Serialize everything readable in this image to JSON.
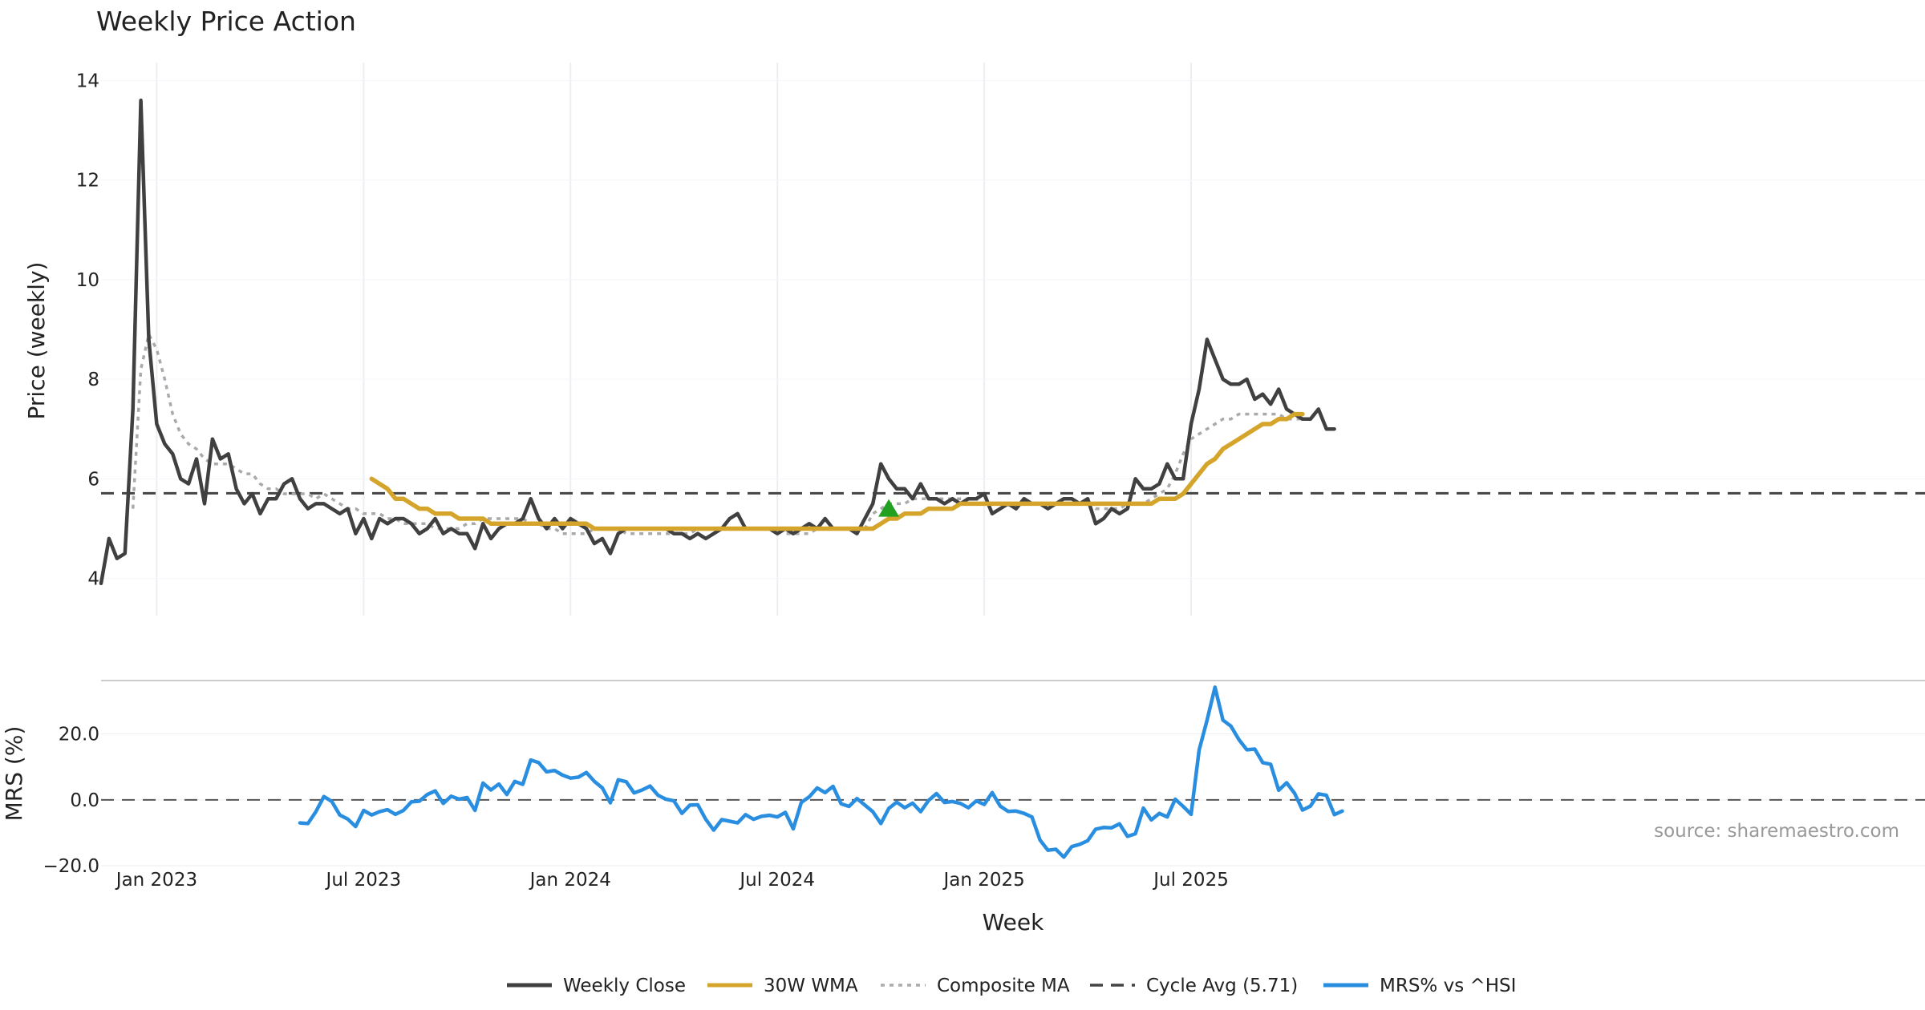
{
  "chart_data": [
    {
      "type": "line",
      "panel": "price",
      "title": "Weekly Price Action",
      "xlabel": "Week",
      "ylabel": "Price (weekly)",
      "ylim": [
        3.8,
        14.2
      ],
      "yticks": [
        4,
        6,
        8,
        10,
        12,
        14
      ],
      "x_start": "2022-11-14",
      "x_step_days": 7,
      "xtick_labels": [
        "Jan 2023",
        "Jul 2023",
        "Jan 2024",
        "Jul 2024",
        "Jan 2025",
        "Jul 2025"
      ],
      "xtick_weeks": [
        7,
        33,
        59,
        85,
        111,
        137
      ],
      "series": [
        {
          "name": "Weekly Close",
          "color": "#404040",
          "style": "solid",
          "start_week": 0,
          "values": [
            3.9,
            4.8,
            4.4,
            4.5,
            7.4,
            13.6,
            8.8,
            7.1,
            6.7,
            6.5,
            6.0,
            5.9,
            6.4,
            5.5,
            6.8,
            6.4,
            6.5,
            5.8,
            5.5,
            5.7,
            5.3,
            5.6,
            5.6,
            5.9,
            6.0,
            5.6,
            5.4,
            5.5,
            5.5,
            5.4,
            5.3,
            5.4,
            4.9,
            5.2,
            4.8,
            5.2,
            5.1,
            5.2,
            5.2,
            5.1,
            4.9,
            5.0,
            5.2,
            4.9,
            5.0,
            4.9,
            4.9,
            4.6,
            5.1,
            4.8,
            5.0,
            5.1,
            5.1,
            5.2,
            5.6,
            5.2,
            5.0,
            5.2,
            5.0,
            5.2,
            5.1,
            5.0,
            4.7,
            4.8,
            4.5,
            4.9,
            5.0,
            5.0,
            5.0,
            5.0,
            5.0,
            5.0,
            4.9,
            4.9,
            4.8,
            4.9,
            4.8,
            4.9,
            5.0,
            5.2,
            5.3,
            5.0,
            5.0,
            5.0,
            5.0,
            4.9,
            5.0,
            4.9,
            5.0,
            5.1,
            5.0,
            5.2,
            5.0,
            5.0,
            5.0,
            4.9,
            5.2,
            5.5,
            6.3,
            6.0,
            5.8,
            5.8,
            5.6,
            5.9,
            5.6,
            5.6,
            5.5,
            5.6,
            5.5,
            5.6,
            5.6,
            5.7,
            5.3,
            5.4,
            5.5,
            5.4,
            5.6,
            5.5,
            5.5,
            5.4,
            5.5,
            5.6,
            5.6,
            5.5,
            5.6,
            5.1,
            5.2,
            5.4,
            5.3,
            5.4,
            6.0,
            5.8,
            5.8,
            5.9,
            6.3,
            6.0,
            6.0,
            7.1,
            7.8,
            8.8,
            8.4,
            8.0,
            7.9,
            7.9,
            8.0,
            7.6,
            7.7,
            7.5,
            7.8,
            7.4,
            7.3,
            7.2,
            7.2,
            7.4,
            7.0,
            7.0
          ]
        },
        {
          "name": "30W WMA",
          "color": "#d4a52a",
          "style": "solid",
          "start_week": 34,
          "values": [
            6.0,
            5.9,
            5.8,
            5.6,
            5.6,
            5.5,
            5.4,
            5.4,
            5.3,
            5.3,
            5.3,
            5.2,
            5.2,
            5.2,
            5.2,
            5.1,
            5.1,
            5.1,
            5.1,
            5.1,
            5.1,
            5.1,
            5.1,
            5.1,
            5.1,
            5.1,
            5.1,
            5.1,
            5.0,
            5.0,
            5.0,
            5.0,
            5.0,
            5.0,
            5.0,
            5.0,
            5.0,
            5.0,
            5.0,
            5.0,
            5.0,
            5.0,
            5.0,
            5.0,
            5.0,
            5.0,
            5.0,
            5.0,
            5.0,
            5.0,
            5.0,
            5.0,
            5.0,
            5.0,
            5.0,
            5.0,
            5.0,
            5.0,
            5.0,
            5.0,
            5.0,
            5.0,
            5.0,
            5.0,
            5.1,
            5.2,
            5.2,
            5.3,
            5.3,
            5.3,
            5.4,
            5.4,
            5.4,
            5.4,
            5.5,
            5.5,
            5.5,
            5.5,
            5.5,
            5.5,
            5.5,
            5.5,
            5.5,
            5.5,
            5.5,
            5.5,
            5.5,
            5.5,
            5.5,
            5.5,
            5.5,
            5.5,
            5.5,
            5.5,
            5.5,
            5.5,
            5.5,
            5.5,
            5.5,
            5.6,
            5.6,
            5.6,
            5.7,
            5.9,
            6.1,
            6.3,
            6.4,
            6.6,
            6.7,
            6.8,
            6.9,
            7.0,
            7.1,
            7.1,
            7.2,
            7.2,
            7.3,
            7.3
          ]
        },
        {
          "name": "Composite MA",
          "color": "#aaaaaa",
          "style": "dotted",
          "start_week": 4,
          "values": [
            5.4,
            8.2,
            8.9,
            8.6,
            8.0,
            7.3,
            6.9,
            6.7,
            6.6,
            6.4,
            6.3,
            6.3,
            6.3,
            6.2,
            6.1,
            6.1,
            5.9,
            5.8,
            5.8,
            5.7,
            5.7,
            5.7,
            5.7,
            5.6,
            5.7,
            5.6,
            5.5,
            5.4,
            5.4,
            5.3,
            5.3,
            5.3,
            5.2,
            5.2,
            5.1,
            5.1,
            5.1,
            5.1,
            5.0,
            5.0,
            5.0,
            5.0,
            5.1,
            5.1,
            5.2,
            5.2,
            5.2,
            5.2,
            5.2,
            5.2,
            5.1,
            5.1,
            5.0,
            5.0,
            4.9,
            4.9,
            4.9,
            4.9,
            5.0,
            5.0,
            5.0,
            5.0,
            4.9,
            4.9,
            4.9,
            4.9,
            4.9,
            4.9,
            4.9,
            4.9,
            4.9,
            5.0,
            5.0,
            5.0,
            5.0,
            5.0,
            5.0,
            5.0,
            5.0,
            5.0,
            5.0,
            5.0,
            4.9,
            4.9,
            4.9,
            4.9,
            5.0,
            5.0,
            5.0,
            5.0,
            5.0,
            5.0,
            5.0,
            5.3,
            5.4,
            5.5,
            5.5,
            5.5,
            5.6,
            5.6,
            5.6,
            5.6,
            5.6,
            5.6,
            5.6,
            5.6,
            5.6,
            5.5,
            5.5,
            5.5,
            5.5,
            5.5,
            5.5,
            5.5,
            5.5,
            5.5,
            5.5,
            5.5,
            5.5,
            5.5,
            5.5,
            5.4,
            5.4,
            5.4,
            5.4,
            5.5,
            5.5,
            5.5,
            5.6,
            5.7,
            5.8,
            6.1,
            6.5,
            6.8,
            6.9,
            7.0,
            7.1,
            7.2,
            7.2,
            7.3,
            7.3,
            7.3,
            7.3,
            7.3,
            7.3,
            7.2,
            7.2,
            7.2
          ]
        }
      ],
      "reference_line": {
        "label": "Cycle Avg (5.71)",
        "value": 5.71,
        "color": "#444444"
      },
      "marker": {
        "type": "triangle-up",
        "color": "#22a022",
        "week": 99,
        "value": 5.4
      }
    },
    {
      "type": "line",
      "panel": "mrs",
      "ylabel": "MRS (%)",
      "ylim": [
        -20.0,
        35.0
      ],
      "yticks": [
        -20.0,
        0.0,
        20.0
      ],
      "ytick_labels": [
        "−20.0",
        "0.0",
        "20.0"
      ],
      "series": [
        {
          "name": "MRS% vs ^HSI",
          "color": "#2a8ee0",
          "style": "solid",
          "start_week": 25,
          "values": [
            -7.0,
            -7.2,
            -3.6,
            1.0,
            -0.5,
            -4.6,
            -5.8,
            -8.1,
            -3.2,
            -4.6,
            -3.6,
            -3.0,
            -4.4,
            -3.2,
            -0.6,
            -0.4,
            1.6,
            2.7,
            -1.1,
            1.1,
            0.2,
            0.7,
            -3.2,
            5.1,
            3.0,
            4.8,
            1.6,
            5.6,
            4.7,
            12.1,
            11.3,
            8.5,
            8.9,
            7.5,
            6.6,
            6.9,
            8.3,
            5.6,
            3.6,
            -0.9,
            6.1,
            5.5,
            2.1,
            3.0,
            4.2,
            1.4,
            0.2,
            -0.3,
            -4.1,
            -1.6,
            -1.5,
            -5.9,
            -9.2,
            -6.0,
            -6.5,
            -7.0,
            -4.5,
            -5.9,
            -5.0,
            -4.7,
            -5.2,
            -3.8,
            -8.8,
            -0.8,
            0.9,
            3.6,
            2.2,
            4.1,
            -1.2,
            -2.0,
            0.4,
            -1.6,
            -3.6,
            -7.2,
            -2.6,
            -0.7,
            -2.4,
            -1.0,
            -3.6,
            -0.2,
            1.9,
            -0.8,
            -0.5,
            -1.1,
            -2.4,
            -0.3,
            -1.4,
            2.2,
            -1.9,
            -3.5,
            -3.4,
            -4.1,
            -5.2,
            -12.2,
            -15.3,
            -15.0,
            -17.4,
            -14.2,
            -13.5,
            -12.4,
            -8.9,
            -8.4,
            -8.5,
            -7.3,
            -11.1,
            -10.3,
            -2.5,
            -6.1,
            -4.1,
            -5.2,
            0.2,
            -2.0,
            -4.4,
            15.1,
            24.2,
            34.2,
            24.2,
            22.4,
            18.3,
            15.2,
            15.4,
            11.3,
            10.8,
            2.9,
            5.2,
            2.0,
            -3.1,
            -1.9,
            1.8,
            1.4,
            -4.5,
            -3.4
          ]
        }
      ],
      "reference_line": {
        "value": 0.0,
        "color": "#555555"
      },
      "source_note": "source: sharemaestro.com"
    }
  ],
  "legend": {
    "position": "bottom-center",
    "items": [
      {
        "label": "Weekly Close",
        "color": "#404040",
        "style": "solid"
      },
      {
        "label": "30W WMA",
        "color": "#d4a52a",
        "style": "solid"
      },
      {
        "label": "Composite MA",
        "color": "#aaaaaa",
        "style": "dotted"
      },
      {
        "label": "Cycle Avg (5.71)",
        "color": "#444444",
        "style": "dashed"
      },
      {
        "label": "MRS% vs ^HSI",
        "color": "#2a8ee0",
        "style": "solid"
      }
    ]
  }
}
